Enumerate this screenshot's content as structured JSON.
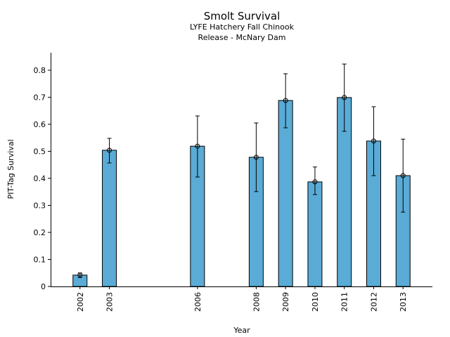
{
  "chart_data": {
    "type": "bar",
    "title": "Smolt Survival",
    "subtitle": [
      "LYFE Hatchery Fall Chinook",
      "Release - McNary Dam"
    ],
    "xlabel": "Year",
    "ylabel": "PIT-Tag Survival",
    "x": [
      2002,
      2003,
      2006,
      2008,
      2009,
      2010,
      2011,
      2012,
      2013
    ],
    "x_tick_labels": [
      "2002",
      "2003",
      "2006",
      "2008",
      "2009",
      "2010",
      "2011",
      "2012",
      "2013"
    ],
    "values": [
      0.042,
      0.504,
      0.519,
      0.478,
      0.688,
      0.387,
      0.699,
      0.538,
      0.41
    ],
    "err_low": [
      0.033,
      0.457,
      0.405,
      0.351,
      0.587,
      0.34,
      0.574,
      0.41,
      0.275
    ],
    "err_high": [
      0.05,
      0.548,
      0.631,
      0.605,
      0.787,
      0.442,
      0.823,
      0.665,
      0.545
    ],
    "xlim": [
      2001,
      2014
    ],
    "ylim": [
      0,
      0.865
    ],
    "y_ticks": [
      0,
      0.1,
      0.2,
      0.3,
      0.4,
      0.5,
      0.6,
      0.7,
      0.8
    ],
    "y_tick_labels": [
      "0",
      "0.1",
      "0.2",
      "0.3",
      "0.4",
      "0.5",
      "0.6",
      "0.7",
      "0.8"
    ],
    "bar_color": "#5aabd6",
    "grid": false
  }
}
